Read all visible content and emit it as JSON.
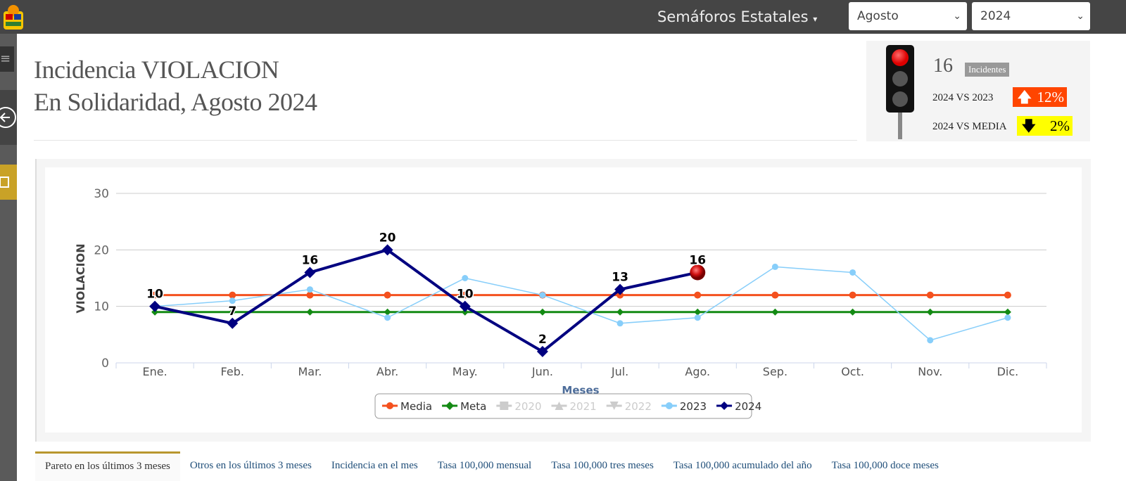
{
  "header": {
    "menu": "Semáforos Estatales",
    "month": "Agosto",
    "year": "2024"
  },
  "title": {
    "line1": "Incidencia VIOLACION",
    "line2": "En Solidaridad, Agosto 2024"
  },
  "semaforo": {
    "count": "16",
    "count_label": "Incidentes",
    "vs_prev_label": "2024 VS 2023",
    "vs_prev": "12%",
    "vs_media_label": "2024 VS MEDIA",
    "vs_media": "2%"
  },
  "chart_data": {
    "type": "line",
    "x_label": "Meses",
    "y_label": "VIOLACION",
    "categories": [
      "Ene.",
      "Feb.",
      "Mar.",
      "Abr.",
      "May.",
      "Jun.",
      "Jul.",
      "Ago.",
      "Sep.",
      "Oct.",
      "Nov.",
      "Dic."
    ],
    "ylim": [
      0,
      30
    ],
    "yticks": [
      0,
      10,
      20,
      30
    ],
    "grid": true,
    "series": [
      {
        "name": "Media",
        "color": "#f4511e",
        "marker": "circle",
        "visible": true,
        "values": [
          12,
          12,
          12,
          12,
          12,
          12,
          12,
          12,
          12,
          12,
          12,
          12
        ]
      },
      {
        "name": "Meta",
        "color": "#138a13",
        "marker": "diamond",
        "visible": true,
        "values": [
          9,
          9,
          9,
          9,
          9,
          9,
          9,
          9,
          9,
          9,
          9,
          9
        ]
      },
      {
        "name": "2020",
        "color": "#cccccc",
        "marker": "square",
        "visible": false,
        "values": [
          null,
          null,
          null,
          null,
          null,
          null,
          null,
          null,
          null,
          null,
          null,
          null
        ]
      },
      {
        "name": "2021",
        "color": "#cccccc",
        "marker": "triangle",
        "visible": false,
        "values": [
          null,
          null,
          null,
          null,
          null,
          null,
          null,
          null,
          null,
          null,
          null,
          null
        ]
      },
      {
        "name": "2022",
        "color": "#cccccc",
        "marker": "triangle-down",
        "visible": false,
        "values": [
          null,
          null,
          null,
          null,
          null,
          null,
          null,
          null,
          null,
          null,
          null,
          null
        ]
      },
      {
        "name": "2023",
        "color": "#87cefa",
        "marker": "circle",
        "visible": true,
        "values": [
          10,
          11,
          13,
          8,
          15,
          12,
          7,
          8,
          17,
          16,
          4,
          8
        ]
      },
      {
        "name": "2024",
        "color": "#000080",
        "marker": "diamond",
        "visible": true,
        "data_labels": true,
        "values": [
          10,
          7,
          16,
          20,
          10,
          2,
          13,
          16,
          null,
          null,
          null,
          null
        ]
      }
    ]
  },
  "tabs": [
    "Pareto en los últimos 3 meses",
    "Otros en los últimos 3 meses",
    "Incidencia en el mes",
    "Tasa 100,000 mensual",
    "Tasa 100,000 tres meses",
    "Tasa 100,000 acumulado del año",
    "Tasa 100,000 doce meses"
  ]
}
